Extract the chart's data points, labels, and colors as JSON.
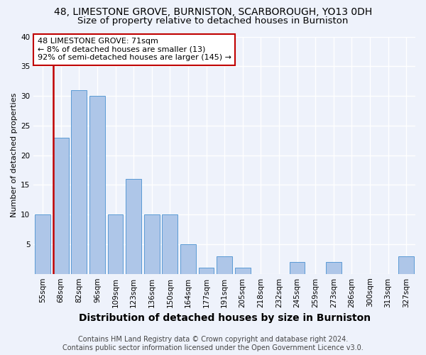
{
  "title1": "48, LIMESTONE GROVE, BURNISTON, SCARBOROUGH, YO13 0DH",
  "title2": "Size of property relative to detached houses in Burniston",
  "xlabel": "Distribution of detached houses by size in Burniston",
  "ylabel": "Number of detached properties",
  "categories": [
    "55sqm",
    "68sqm",
    "82sqm",
    "96sqm",
    "109sqm",
    "123sqm",
    "136sqm",
    "150sqm",
    "164sqm",
    "177sqm",
    "191sqm",
    "205sqm",
    "218sqm",
    "232sqm",
    "245sqm",
    "259sqm",
    "273sqm",
    "286sqm",
    "300sqm",
    "313sqm",
    "327sqm"
  ],
  "values": [
    10,
    23,
    31,
    30,
    10,
    16,
    10,
    10,
    5,
    1,
    3,
    1,
    0,
    0,
    2,
    0,
    2,
    0,
    0,
    0,
    3
  ],
  "bar_color": "#aec6e8",
  "bar_edge_color": "#5b9bd5",
  "highlight_index": 1,
  "highlight_color": "#c00000",
  "annotation_line1": "48 LIMESTONE GROVE: 71sqm",
  "annotation_line2": "← 8% of detached houses are smaller (13)",
  "annotation_line3": "92% of semi-detached houses are larger (145) →",
  "footnote1": "Contains HM Land Registry data © Crown copyright and database right 2024.",
  "footnote2": "Contains public sector information licensed under the Open Government Licence v3.0.",
  "ylim": [
    0,
    40
  ],
  "yticks": [
    0,
    5,
    10,
    15,
    20,
    25,
    30,
    35,
    40
  ],
  "background_color": "#eef2fb",
  "grid_color": "#ffffff",
  "title1_fontsize": 10,
  "title2_fontsize": 9.5,
  "xlabel_fontsize": 10,
  "ylabel_fontsize": 8,
  "tick_fontsize": 7.5,
  "annotation_fontsize": 8,
  "footnote_fontsize": 7
}
